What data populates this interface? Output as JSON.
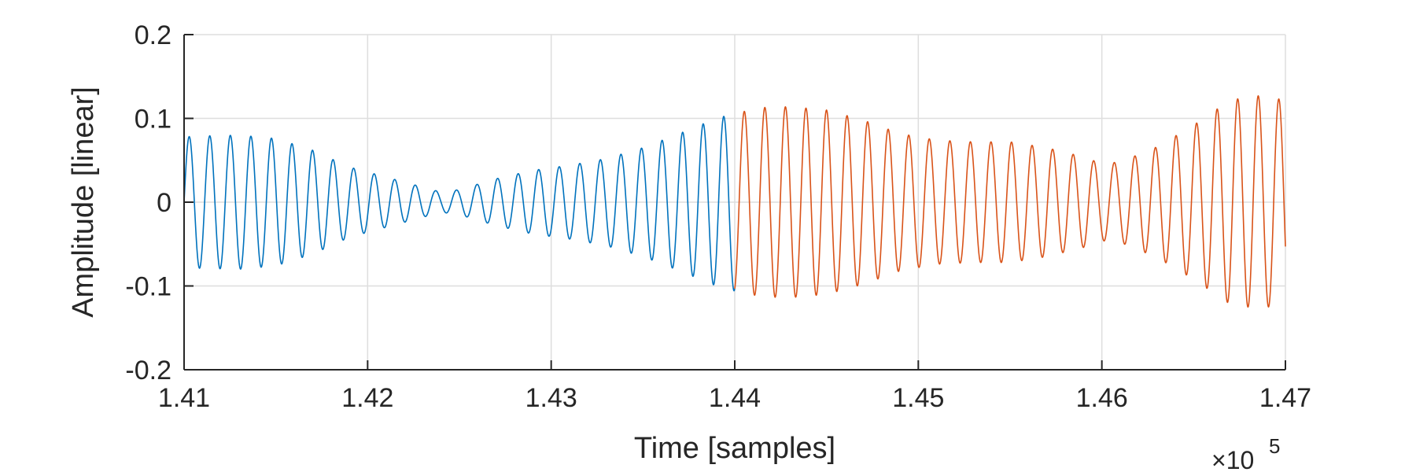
{
  "chart_data": {
    "type": "line",
    "title": "",
    "xlabel": "Time [samples]",
    "ylabel": "Amplitude [linear]",
    "x_exponent_label": "×10",
    "x_exponent_power": "5",
    "xlim": [
      141000,
      147000
    ],
    "ylim": [
      -0.2,
      0.2
    ],
    "x_ticks": [
      141000,
      142000,
      143000,
      144000,
      145000,
      146000,
      147000
    ],
    "x_tick_labels": [
      "1.41",
      "1.42",
      "1.43",
      "1.44",
      "1.45",
      "1.46",
      "1.47"
    ],
    "y_ticks": [
      -0.2,
      -0.1,
      0,
      0.1,
      0.2
    ],
    "y_tick_labels": [
      "-0.2",
      "-0.1",
      "0",
      "0.1",
      "0.2"
    ],
    "grid": true,
    "series": [
      {
        "color": "#0072BD",
        "x_range": [
          141000,
          144000
        ],
        "oscillation_period_samples": 112,
        "envelope": [
          [
            141000,
            0.078
          ],
          [
            141100,
            0.079
          ],
          [
            141300,
            0.08
          ],
          [
            141500,
            0.076
          ],
          [
            141700,
            0.062
          ],
          [
            141900,
            0.042
          ],
          [
            142100,
            0.03
          ],
          [
            142300,
            0.018
          ],
          [
            142400,
            0.012
          ],
          [
            142500,
            0.015
          ],
          [
            142700,
            0.028
          ],
          [
            142900,
            0.038
          ],
          [
            143100,
            0.044
          ],
          [
            143300,
            0.052
          ],
          [
            143500,
            0.065
          ],
          [
            143700,
            0.082
          ],
          [
            143900,
            0.1
          ],
          [
            144000,
            0.106
          ]
        ]
      },
      {
        "color": "#D95319",
        "x_range": [
          144000,
          147000
        ],
        "oscillation_period_samples": 112,
        "envelope": [
          [
            144000,
            0.106
          ],
          [
            144150,
            0.113
          ],
          [
            144300,
            0.114
          ],
          [
            144500,
            0.11
          ],
          [
            144700,
            0.098
          ],
          [
            144900,
            0.082
          ],
          [
            145100,
            0.074
          ],
          [
            145300,
            0.072
          ],
          [
            145500,
            0.072
          ],
          [
            145700,
            0.065
          ],
          [
            145900,
            0.054
          ],
          [
            146000,
            0.046
          ],
          [
            146100,
            0.048
          ],
          [
            146300,
            0.066
          ],
          [
            146500,
            0.092
          ],
          [
            146700,
            0.122
          ],
          [
            146850,
            0.127
          ],
          [
            147000,
            0.122
          ]
        ]
      }
    ]
  }
}
